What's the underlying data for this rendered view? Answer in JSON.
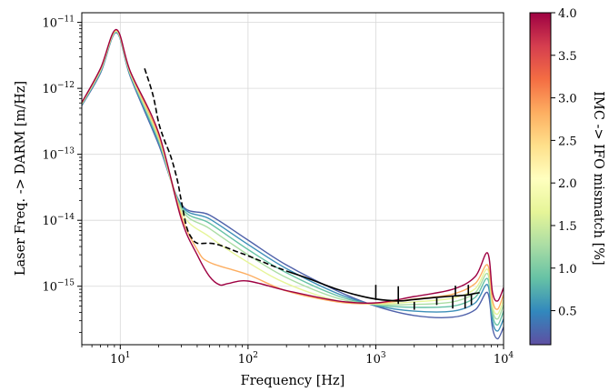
{
  "chart_data": [
    {
      "type": "line",
      "xlabel": "Frequency [Hz]",
      "ylabel": "Laser Freq. -> DARM [m/Hz]",
      "xscale": "log",
      "yscale": "log",
      "xlim": [
        5,
        10000
      ],
      "ylim": [
        1.3e-16,
        1.4e-11
      ],
      "grid": true,
      "x_ticks": [
        {
          "base": "10",
          "exp": "1",
          "value": 10
        },
        {
          "base": "10",
          "exp": "2",
          "value": 100
        },
        {
          "base": "10",
          "exp": "3",
          "value": 1000
        },
        {
          "base": "10",
          "exp": "4",
          "value": 10000
        }
      ],
      "y_ticks": [
        {
          "base": "10",
          "exp": "−15",
          "value": 1e-15
        },
        {
          "base": "10",
          "exp": "−14",
          "value": 1e-14
        },
        {
          "base": "10",
          "exp": "−13",
          "value": 1e-13
        },
        {
          "base": "10",
          "exp": "−12",
          "value": 1e-12
        },
        {
          "base": "10",
          "exp": "−11",
          "value": 1e-11
        }
      ],
      "series": [
        {
          "mismatch": 0.5,
          "color": "#4f61aa",
          "points": [
            [
              5,
              5.5e-13
            ],
            [
              7,
              1.7e-12
            ],
            [
              9.3,
              7e-12
            ],
            [
              12,
              1.5e-12
            ],
            [
              20,
              1.4e-13
            ],
            [
              30,
              1.75e-14
            ],
            [
              50,
              1.2e-14
            ],
            [
              100,
              5e-15
            ],
            [
              200,
              2.1e-15
            ],
            [
              500,
              8.5e-16
            ],
            [
              1000,
              5e-16
            ],
            [
              2000,
              3.6e-16
            ],
            [
              4000,
              3.4e-16
            ],
            [
              6000,
              4.4e-16
            ],
            [
              7500,
              8e-16
            ],
            [
              8200,
              2.3e-16
            ],
            [
              9000,
              1.6e-16
            ],
            [
              10000,
              2.4e-16
            ]
          ]
        },
        {
          "mismatch": 1.0,
          "color": "#3d8fb8",
          "points": [
            [
              5,
              5.6e-13
            ],
            [
              7,
              1.75e-12
            ],
            [
              9.3,
              7.1e-12
            ],
            [
              12,
              1.55e-12
            ],
            [
              20,
              1.5e-13
            ],
            [
              30,
              1.7e-14
            ],
            [
              50,
              1.05e-14
            ],
            [
              100,
              4.3e-15
            ],
            [
              200,
              1.85e-15
            ],
            [
              500,
              7.8e-16
            ],
            [
              1000,
              5.1e-16
            ],
            [
              2000,
              4.2e-16
            ],
            [
              4000,
              4.2e-16
            ],
            [
              6000,
              5.6e-16
            ],
            [
              7500,
              1.05e-15
            ],
            [
              8200,
              2.9e-16
            ],
            [
              9000,
              2.1e-16
            ],
            [
              10000,
              3.2e-16
            ]
          ]
        },
        {
          "mismatch": 1.5,
          "color": "#66c2a5",
          "points": [
            [
              5,
              5.7e-13
            ],
            [
              7,
              1.8e-12
            ],
            [
              9.3,
              7.2e-12
            ],
            [
              12,
              1.6e-12
            ],
            [
              20,
              1.6e-13
            ],
            [
              30,
              1.6e-14
            ],
            [
              50,
              9e-15
            ],
            [
              100,
              3.6e-15
            ],
            [
              200,
              1.6e-15
            ],
            [
              500,
              7.2e-16
            ],
            [
              1000,
              5.2e-16
            ],
            [
              2000,
              4.8e-16
            ],
            [
              4000,
              5e-16
            ],
            [
              6000,
              6.8e-16
            ],
            [
              7500,
              1.3e-15
            ],
            [
              8200,
              3.6e-16
            ],
            [
              9000,
              2.6e-16
            ],
            [
              10000,
              4.2e-16
            ]
          ]
        },
        {
          "mismatch": 2.0,
          "color": "#abdda4",
          "points": [
            [
              5,
              5.8e-13
            ],
            [
              7,
              1.85e-12
            ],
            [
              9.3,
              7.3e-12
            ],
            [
              12,
              1.65e-12
            ],
            [
              20,
              1.7e-13
            ],
            [
              30,
              1.5e-14
            ],
            [
              50,
              7.5e-15
            ],
            [
              100,
              3e-15
            ],
            [
              200,
              1.35e-15
            ],
            [
              500,
              6.6e-16
            ],
            [
              1000,
              5.3e-16
            ],
            [
              2000,
              5.3e-16
            ],
            [
              4000,
              5.8e-16
            ],
            [
              6000,
              8e-16
            ],
            [
              7500,
              1.55e-15
            ],
            [
              8200,
              4.3e-16
            ],
            [
              9000,
              3.2e-16
            ],
            [
              10000,
              5.2e-16
            ]
          ]
        },
        {
          "mismatch": 2.5,
          "color": "#e6f598",
          "points": [
            [
              5,
              5.9e-13
            ],
            [
              7,
              1.9e-12
            ],
            [
              9.3,
              7.4e-12
            ],
            [
              12,
              1.7e-12
            ],
            [
              20,
              1.8e-13
            ],
            [
              30,
              1.35e-14
            ],
            [
              50,
              5.6e-15
            ],
            [
              100,
              2.3e-15
            ],
            [
              200,
              1.1e-15
            ],
            [
              500,
              6e-16
            ],
            [
              1000,
              5.4e-16
            ],
            [
              2000,
              5.8e-16
            ],
            [
              4000,
              6.6e-16
            ],
            [
              6000,
              9.2e-16
            ],
            [
              7500,
              1.8e-15
            ],
            [
              8200,
              5e-16
            ],
            [
              9000,
              3.8e-16
            ],
            [
              10000,
              6.2e-16
            ]
          ]
        },
        {
          "mismatch": 3.0,
          "color": "#fdae61",
          "points": [
            [
              5,
              6e-13
            ],
            [
              7,
              1.95e-12
            ],
            [
              9.3,
              7.6e-12
            ],
            [
              12,
              1.75e-12
            ],
            [
              20,
              1.9e-13
            ],
            [
              30,
              1.2e-14
            ],
            [
              40,
              3.6e-15
            ],
            [
              50,
              2.3e-15
            ],
            [
              100,
              1.5e-15
            ],
            [
              200,
              8.5e-16
            ],
            [
              500,
              5.8e-16
            ],
            [
              1000,
              5.5e-16
            ],
            [
              2000,
              6.4e-16
            ],
            [
              4000,
              7.6e-16
            ],
            [
              6000,
              1.1e-15
            ],
            [
              7500,
              2.1e-15
            ],
            [
              8200,
              6e-16
            ],
            [
              9000,
              4.5e-16
            ],
            [
              10000,
              7.5e-16
            ]
          ]
        },
        {
          "mismatch": 4.0,
          "color": "#9e0142",
          "points": [
            [
              5,
              6.1e-13
            ],
            [
              7,
              2e-12
            ],
            [
              9.3,
              7.8e-12
            ],
            [
              12,
              1.8e-12
            ],
            [
              20,
              2.1e-13
            ],
            [
              30,
              1.05e-14
            ],
            [
              40,
              3e-15
            ],
            [
              50,
              1.4e-15
            ],
            [
              60,
              1.05e-15
            ],
            [
              70,
              1.1e-15
            ],
            [
              100,
              1.2e-15
            ],
            [
              200,
              8.6e-16
            ],
            [
              500,
              6e-16
            ],
            [
              1000,
              5.6e-16
            ],
            [
              2000,
              7e-16
            ],
            [
              4000,
              9e-16
            ],
            [
              6000,
              1.4e-15
            ],
            [
              7500,
              3.2e-15
            ],
            [
              8200,
              8e-16
            ],
            [
              9000,
              6e-16
            ],
            [
              10000,
              9.5e-16
            ]
          ]
        }
      ],
      "measurement_dashed": [
        [
          15.5,
          2e-12
        ],
        [
          18,
          8e-13
        ],
        [
          20,
          3e-13
        ],
        [
          22,
          1.7e-13
        ],
        [
          25,
          9e-14
        ],
        [
          28,
          4e-14
        ],
        [
          30,
          2e-14
        ],
        [
          33,
          8e-15
        ],
        [
          36,
          5.5e-15
        ],
        [
          40,
          4.5e-15
        ],
        [
          50,
          4.5e-15
        ],
        [
          60,
          4.2e-15
        ],
        [
          80,
          3.4e-15
        ],
        [
          100,
          2.9e-15
        ],
        [
          150,
          2.1e-15
        ],
        [
          200,
          1.7e-15
        ]
      ],
      "measurement_solid": [
        [
          200,
          1.7e-15
        ],
        [
          300,
          1.3e-15
        ],
        [
          400,
          1.05e-15
        ],
        [
          500,
          9e-16
        ],
        [
          700,
          7.4e-16
        ],
        [
          1000,
          6.4e-16
        ],
        [
          1500,
          6e-16
        ],
        [
          2000,
          6.3e-16
        ],
        [
          3000,
          6.8e-16
        ],
        [
          4000,
          7.1e-16
        ],
        [
          5000,
          7.3e-16
        ],
        [
          6000,
          7.8e-16
        ],
        [
          6500,
          8e-16
        ]
      ],
      "measurement_spikes": [
        [
          1000,
          6.2e-16,
          1.05e-15
        ],
        [
          1500,
          5.4e-16,
          1e-15
        ],
        [
          2000,
          5.8e-16,
          4.4e-16
        ],
        [
          3000,
          6.6e-16,
          5.2e-16
        ],
        [
          4000,
          7e-16,
          4.6e-16
        ],
        [
          4200,
          7e-16,
          1.02e-15
        ],
        [
          5000,
          7.3e-16,
          4.6e-16
        ],
        [
          5300,
          7.4e-16,
          1.05e-15
        ],
        [
          5600,
          7.6e-16,
          5.2e-16
        ]
      ]
    },
    {
      "type": "heatmap",
      "role": "colorbar",
      "label": "IMC -> IFO mismatch [%]",
      "range": [
        0.1,
        4.0
      ],
      "colormap": "Spectral",
      "colorbar_stops": [
        "#5e4fa2",
        "#3288bd",
        "#66c2a5",
        "#abdda4",
        "#e6f598",
        "#ffffbf",
        "#fee08b",
        "#fdae61",
        "#f46d43",
        "#d53e4f",
        "#9e0142"
      ],
      "ticks": [
        "0.5",
        "1.0",
        "1.5",
        "2.0",
        "2.5",
        "3.0",
        "3.5",
        "4.0"
      ]
    }
  ]
}
